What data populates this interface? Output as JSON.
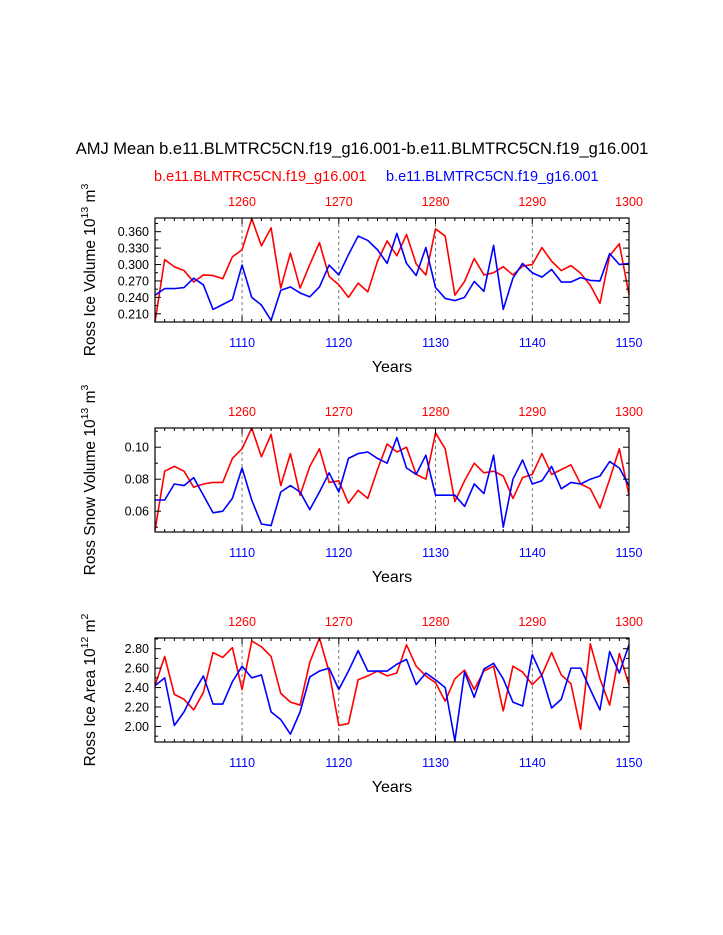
{
  "title": "AMJ Mean b.e11.BLMTRC5CN.f19_g16.001-b.e11.BLMTRC5CN.f19_g16.001",
  "legend": [
    {
      "label": "b.e11.BLMTRC5CN.f19_g16.001",
      "color": "#ff0000"
    },
    {
      "label": "b.e11.BLMTRC5CN.f19_g16.001",
      "color": "#0000ff"
    }
  ],
  "colors": {
    "red": "#ff0000",
    "blue": "#0000ff",
    "axis": "#000000",
    "grid": "#555555"
  },
  "chart_data": [
    {
      "type": "line",
      "ylabel_main": "Ross Ice Volume 10",
      "ylabel_exp": "13",
      "ylabel_unit": " m",
      "ylabel_unit_exp": "3",
      "xlabel": "Years",
      "ylim": [
        0.195,
        0.385
      ],
      "yticks": [
        0.21,
        0.24,
        0.27,
        0.3,
        0.33,
        0.36
      ],
      "ytick_labels": [
        "0.210",
        "0.240",
        "0.270",
        "0.300",
        "0.330",
        "0.360"
      ],
      "x_bottom": {
        "range": [
          1101,
          1150
        ],
        "ticks": [
          1110,
          1120,
          1130,
          1140,
          1150
        ],
        "labels": [
          "1110",
          "1120",
          "1130",
          "1140",
          "1150"
        ],
        "color": "#0000ff"
      },
      "x_top": {
        "range": [
          1251,
          1300
        ],
        "ticks": [
          1260,
          1270,
          1280,
          1290,
          1300
        ],
        "labels": [
          "1260",
          "1270",
          "1280",
          "1290",
          "1300"
        ],
        "color": "#ff0000"
      },
      "series": [
        {
          "name": "red",
          "color": "#ff0000",
          "values": [
            0.195,
            0.309,
            0.296,
            0.289,
            0.268,
            0.281,
            0.28,
            0.274,
            0.314,
            0.327,
            0.384,
            0.334,
            0.367,
            0.257,
            0.321,
            0.257,
            0.3,
            0.34,
            0.278,
            0.263,
            0.24,
            0.266,
            0.25,
            0.306,
            0.343,
            0.316,
            0.355,
            0.301,
            0.281,
            0.365,
            0.352,
            0.244,
            0.269,
            0.311,
            0.281,
            0.285,
            0.296,
            0.281,
            0.297,
            0.3,
            0.331,
            0.306,
            0.289,
            0.298,
            0.284,
            0.262,
            0.229,
            0.316,
            0.338,
            0.245
          ]
        },
        {
          "name": "blue",
          "color": "#0000ff",
          "values": [
            0.244,
            0.256,
            0.256,
            0.258,
            0.275,
            0.263,
            0.218,
            0.227,
            0.236,
            0.299,
            0.24,
            0.226,
            0.198,
            0.253,
            0.259,
            0.248,
            0.241,
            0.259,
            0.299,
            0.281,
            0.318,
            0.352,
            0.344,
            0.327,
            0.302,
            0.357,
            0.302,
            0.28,
            0.331,
            0.258,
            0.238,
            0.234,
            0.24,
            0.269,
            0.251,
            0.335,
            0.218,
            0.275,
            0.302,
            0.285,
            0.277,
            0.291,
            0.268,
            0.268,
            0.276,
            0.271,
            0.27,
            0.32,
            0.3,
            0.302
          ]
        }
      ]
    },
    {
      "type": "line",
      "ylabel_main": "Ross Snow Volume 10",
      "ylabel_exp": "13",
      "ylabel_unit": " m",
      "ylabel_unit_exp": "3",
      "xlabel": "Years",
      "ylim": [
        0.047,
        0.112
      ],
      "yticks": [
        0.06,
        0.08,
        0.1
      ],
      "ytick_labels": [
        "0.06",
        "0.08",
        "0.10"
      ],
      "x_bottom": {
        "range": [
          1101,
          1150
        ],
        "ticks": [
          1110,
          1120,
          1130,
          1140,
          1150
        ],
        "labels": [
          "1110",
          "1120",
          "1130",
          "1140",
          "1150"
        ],
        "color": "#0000ff"
      },
      "x_top": {
        "range": [
          1251,
          1300
        ],
        "ticks": [
          1260,
          1270,
          1280,
          1290,
          1300
        ],
        "labels": [
          "1260",
          "1270",
          "1280",
          "1290",
          "1300"
        ],
        "color": "#ff0000"
      },
      "series": [
        {
          "name": "red",
          "color": "#ff0000",
          "values": [
            0.048,
            0.085,
            0.088,
            0.085,
            0.075,
            0.077,
            0.078,
            0.078,
            0.093,
            0.099,
            0.112,
            0.094,
            0.108,
            0.076,
            0.096,
            0.07,
            0.088,
            0.099,
            0.078,
            0.079,
            0.065,
            0.073,
            0.068,
            0.086,
            0.102,
            0.097,
            0.1,
            0.083,
            0.08,
            0.109,
            0.099,
            0.066,
            0.079,
            0.09,
            0.084,
            0.085,
            0.082,
            0.068,
            0.081,
            0.083,
            0.096,
            0.083,
            0.086,
            0.089,
            0.077,
            0.074,
            0.062,
            0.08,
            0.099,
            0.07
          ]
        },
        {
          "name": "blue",
          "color": "#0000ff",
          "values": [
            0.067,
            0.067,
            0.077,
            0.076,
            0.081,
            0.07,
            0.059,
            0.06,
            0.068,
            0.087,
            0.067,
            0.052,
            0.051,
            0.072,
            0.076,
            0.072,
            0.061,
            0.072,
            0.084,
            0.072,
            0.093,
            0.096,
            0.097,
            0.093,
            0.09,
            0.106,
            0.087,
            0.083,
            0.095,
            0.07,
            0.07,
            0.07,
            0.063,
            0.077,
            0.071,
            0.095,
            0.05,
            0.08,
            0.092,
            0.077,
            0.079,
            0.088,
            0.074,
            0.078,
            0.077,
            0.08,
            0.082,
            0.091,
            0.087,
            0.076
          ]
        }
      ]
    },
    {
      "type": "line",
      "ylabel_main": "Ross Ice Area 10",
      "ylabel_exp": "12",
      "ylabel_unit": " m",
      "ylabel_unit_exp": "2",
      "xlabel": "Years",
      "ylim": [
        1.84,
        2.91
      ],
      "yticks": [
        2.0,
        2.2,
        2.4,
        2.6,
        2.8
      ],
      "ytick_labels": [
        "2.00",
        "2.20",
        "2.40",
        "2.60",
        "2.80"
      ],
      "x_bottom": {
        "range": [
          1101,
          1150
        ],
        "ticks": [
          1110,
          1120,
          1130,
          1140,
          1150
        ],
        "labels": [
          "1110",
          "1120",
          "1130",
          "1140",
          "1150"
        ],
        "color": "#0000ff"
      },
      "x_top": {
        "range": [
          1251,
          1300
        ],
        "ticks": [
          1260,
          1270,
          1280,
          1290,
          1300
        ],
        "labels": [
          "1260",
          "1270",
          "1280",
          "1290",
          "1300"
        ],
        "color": "#ff0000"
      },
      "series": [
        {
          "name": "red",
          "color": "#ff0000",
          "values": [
            2.42,
            2.72,
            2.33,
            2.28,
            2.17,
            2.35,
            2.76,
            2.71,
            2.81,
            2.38,
            2.88,
            2.82,
            2.72,
            2.34,
            2.25,
            2.22,
            2.66,
            2.91,
            2.56,
            2.01,
            2.03,
            2.48,
            2.52,
            2.57,
            2.52,
            2.55,
            2.84,
            2.62,
            2.52,
            2.45,
            2.26,
            2.49,
            2.58,
            2.38,
            2.57,
            2.62,
            2.16,
            2.62,
            2.56,
            2.43,
            2.53,
            2.76,
            2.53,
            2.44,
            1.97,
            2.85,
            2.49,
            2.22,
            2.75,
            2.43
          ]
        },
        {
          "name": "blue",
          "color": "#0000ff",
          "values": [
            2.42,
            2.5,
            2.01,
            2.15,
            2.35,
            2.52,
            2.23,
            2.23,
            2.46,
            2.62,
            2.5,
            2.53,
            2.15,
            2.07,
            1.92,
            2.15,
            2.51,
            2.57,
            2.6,
            2.38,
            2.57,
            2.78,
            2.57,
            2.57,
            2.57,
            2.64,
            2.69,
            2.43,
            2.55,
            2.48,
            2.4,
            1.85,
            2.56,
            2.3,
            2.59,
            2.65,
            2.49,
            2.25,
            2.21,
            2.74,
            2.52,
            2.19,
            2.28,
            2.6,
            2.6,
            2.38,
            2.17,
            2.77,
            2.55,
            2.84
          ]
        }
      ]
    }
  ]
}
